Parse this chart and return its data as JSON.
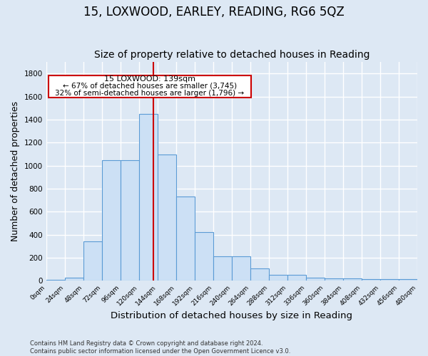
{
  "title1": "15, LOXWOOD, EARLEY, READING, RG6 5QZ",
  "title2": "Size of property relative to detached houses in Reading",
  "xlabel": "Distribution of detached houses by size in Reading",
  "ylabel": "Number of detached properties",
  "footnote": "Contains HM Land Registry data © Crown copyright and database right 2024.\nContains public sector information licensed under the Open Government Licence v3.0.",
  "bar_color": "#cce0f5",
  "bar_edge_color": "#5b9bd5",
  "vline_x": 139,
  "vline_color": "#cc0000",
  "annotation_title": "15 LOXWOOD: 139sqm",
  "annotation_line1": "← 67% of detached houses are smaller (3,745)",
  "annotation_line2": "32% of semi-detached houses are larger (1,796) →",
  "annotation_box_edge": "#cc0000",
  "bin_edges": [
    0,
    24,
    48,
    72,
    96,
    120,
    144,
    168,
    192,
    216,
    240,
    264,
    288,
    312,
    336,
    360,
    384,
    408,
    432,
    456,
    480
  ],
  "bin_heights": [
    8,
    28,
    345,
    1050,
    1050,
    1450,
    1100,
    730,
    425,
    215,
    215,
    110,
    55,
    55,
    30,
    20,
    20,
    15,
    15,
    15
  ],
  "ylim": [
    0,
    1900
  ],
  "background_color": "#dde8f4",
  "grid_color": "#ffffff",
  "title1_fontsize": 12,
  "title2_fontsize": 10,
  "xlabel_fontsize": 9.5,
  "ylabel_fontsize": 9
}
